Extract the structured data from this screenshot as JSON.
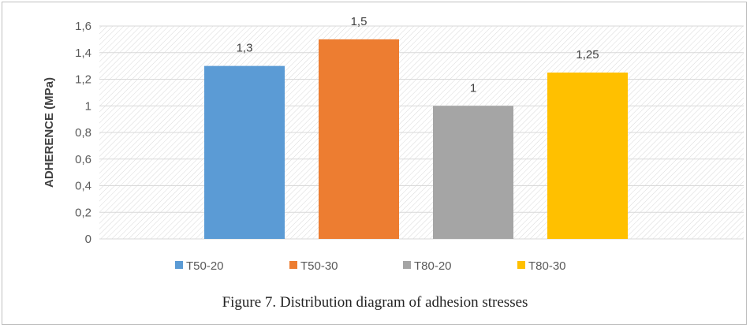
{
  "figure": {
    "caption": "Figure 7. Distribution diagram of adhesion stresses"
  },
  "chart_data": {
    "type": "bar",
    "categories": [
      "T50-20",
      "T50-30",
      "T80-20",
      "T80-30"
    ],
    "values": [
      1.3,
      1.5,
      1,
      1.25
    ],
    "data_labels": [
      "1,3",
      "1,5",
      "1",
      "1,25"
    ],
    "colors": [
      "#5B9BD5",
      "#ED7D31",
      "#A5A5A5",
      "#FFC000"
    ],
    "title": "",
    "xlabel": "",
    "ylabel": "ADHERENCE (MPa)",
    "ylim": [
      0,
      1.6
    ],
    "yticks": [
      {
        "value": 0,
        "label": "0"
      },
      {
        "value": 0.2,
        "label": "0,2"
      },
      {
        "value": 0.4,
        "label": "0,4"
      },
      {
        "value": 0.6,
        "label": "0,6"
      },
      {
        "value": 0.8,
        "label": "0,8"
      },
      {
        "value": 1,
        "label": "1"
      },
      {
        "value": 1.2,
        "label": "1,2"
      },
      {
        "value": 1.4,
        "label": "1,4"
      },
      {
        "value": 1.6,
        "label": "1,6"
      }
    ],
    "grid": true,
    "plot_background": "diagonal-hatch",
    "legend": {
      "position": "bottom",
      "entries": [
        "T50-20",
        "T50-30",
        "T80-20",
        "T80-30"
      ]
    }
  }
}
